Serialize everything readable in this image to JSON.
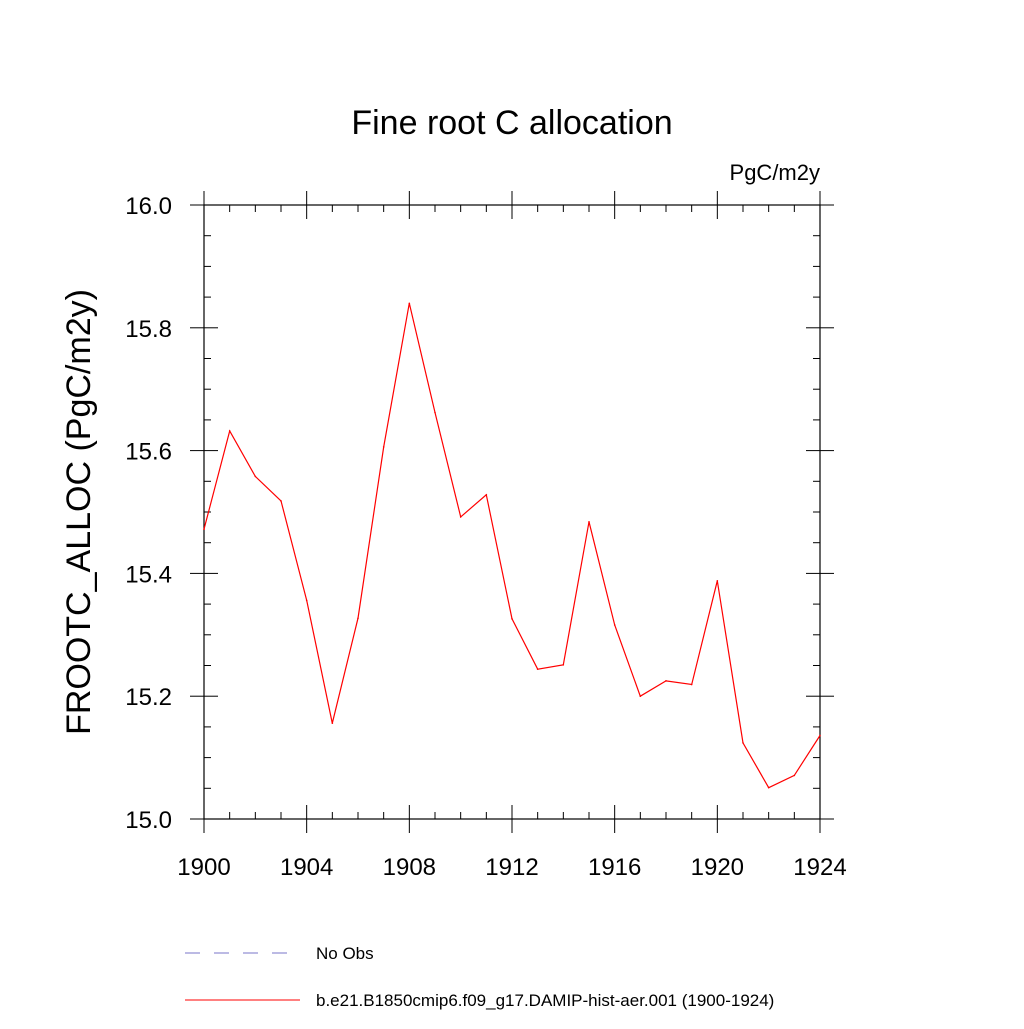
{
  "chart_data": {
    "type": "line",
    "title": "Fine root C allocation",
    "units_label": "PgC/m2y",
    "ylabel": "FROOTC_ALLOC  (PgC/m2y)",
    "xlabel": "",
    "xlim": [
      1900,
      1924
    ],
    "ylim": [
      15.0,
      16.0
    ],
    "x_ticks": [
      "1900",
      "1904",
      "1908",
      "1912",
      "1916",
      "1920",
      "1924"
    ],
    "y_ticks": [
      "15.0",
      "15.2",
      "15.4",
      "15.6",
      "15.8",
      "16.0"
    ],
    "grid": false,
    "legend_position": "bottom",
    "x": [
      1900,
      1901,
      1902,
      1903,
      1904,
      1905,
      1906,
      1907,
      1908,
      1909,
      1910,
      1911,
      1912,
      1913,
      1914,
      1915,
      1916,
      1917,
      1918,
      1919,
      1920,
      1921,
      1922,
      1923,
      1924
    ],
    "series": [
      {
        "name": "b.e21.B1850cmip6.f09_g17.DAMIP-hist-aer.001 (1900-1924)",
        "color": "#ff0000",
        "style": "solid",
        "values": [
          15.472,
          15.632,
          15.558,
          15.518,
          15.356,
          15.156,
          15.327,
          15.606,
          15.84,
          15.662,
          15.492,
          15.528,
          15.326,
          15.244,
          15.251,
          15.484,
          15.316,
          15.2,
          15.225,
          15.219,
          15.388,
          15.124,
          15.051,
          15.071,
          15.136
        ]
      }
    ],
    "legend": [
      {
        "label": "No Obs",
        "color": "#7a74c8",
        "style": "dashed"
      },
      {
        "label": "b.e21.B1850cmip6.f09_g17.DAMIP-hist-aer.001 (1900-1924)",
        "color": "#ff0000",
        "style": "solid"
      }
    ]
  }
}
